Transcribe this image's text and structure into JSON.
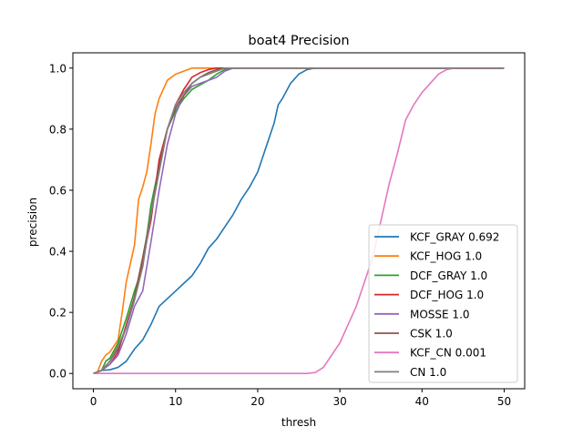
{
  "chart_data": {
    "type": "line",
    "title": "boat4 Precision",
    "xlabel": "thresh",
    "ylabel": "precision",
    "xlim": [
      -2.5,
      52.5
    ],
    "ylim": [
      -0.05,
      1.05
    ],
    "xticks": [
      0,
      10,
      20,
      30,
      40,
      50
    ],
    "yticks": [
      0.0,
      0.2,
      0.4,
      0.6,
      0.8,
      1.0
    ],
    "ytick_labels": [
      "0.0",
      "0.2",
      "0.4",
      "0.6",
      "0.8",
      "1.0"
    ],
    "grid": false,
    "legend_position": "lower-right",
    "series": [
      {
        "name": "KCF_GRAY 0.692",
        "color": "#1f77b4",
        "points": [
          [
            0,
            0
          ],
          [
            1,
            0.01
          ],
          [
            2,
            0.012
          ],
          [
            3,
            0.02
          ],
          [
            4,
            0.04
          ],
          [
            5,
            0.08
          ],
          [
            6,
            0.11
          ],
          [
            7,
            0.16
          ],
          [
            8,
            0.22
          ],
          [
            9,
            0.245
          ],
          [
            10,
            0.27
          ],
          [
            11,
            0.295
          ],
          [
            12,
            0.32
          ],
          [
            13,
            0.36
          ],
          [
            14,
            0.41
          ],
          [
            15,
            0.44
          ],
          [
            16,
            0.48
          ],
          [
            17,
            0.52
          ],
          [
            18,
            0.57
          ],
          [
            19,
            0.61
          ],
          [
            20,
            0.66
          ],
          [
            21,
            0.74
          ],
          [
            22,
            0.82
          ],
          [
            22.5,
            0.88
          ],
          [
            23,
            0.9
          ],
          [
            24,
            0.95
          ],
          [
            25,
            0.98
          ],
          [
            26,
            0.995
          ],
          [
            27,
            1.0
          ],
          [
            50,
            1.0
          ]
        ]
      },
      {
        "name": "KCF_HOG 1.0",
        "color": "#ff7f0e",
        "points": [
          [
            0,
            0
          ],
          [
            0.5,
            0.005
          ],
          [
            1,
            0.04
          ],
          [
            1.5,
            0.06
          ],
          [
            2,
            0.07
          ],
          [
            3,
            0.11
          ],
          [
            3.5,
            0.2
          ],
          [
            4,
            0.3
          ],
          [
            5,
            0.42
          ],
          [
            5.5,
            0.57
          ],
          [
            6,
            0.61
          ],
          [
            6.5,
            0.66
          ],
          [
            7,
            0.75
          ],
          [
            7.5,
            0.85
          ],
          [
            8,
            0.9
          ],
          [
            9,
            0.96
          ],
          [
            10,
            0.98
          ],
          [
            11,
            0.99
          ],
          [
            12,
            1.0
          ],
          [
            50,
            1.0
          ]
        ]
      },
      {
        "name": "DCF_GRAY 1.0",
        "color": "#2ca02c",
        "points": [
          [
            0,
            0
          ],
          [
            1,
            0.01
          ],
          [
            1.5,
            0.04
          ],
          [
            2,
            0.05
          ],
          [
            3,
            0.1
          ],
          [
            4,
            0.18
          ],
          [
            5,
            0.27
          ],
          [
            6,
            0.35
          ],
          [
            7,
            0.55
          ],
          [
            8,
            0.68
          ],
          [
            9,
            0.8
          ],
          [
            10,
            0.86
          ],
          [
            11,
            0.9
          ],
          [
            12,
            0.93
          ],
          [
            13,
            0.945
          ],
          [
            14,
            0.96
          ],
          [
            15,
            0.98
          ],
          [
            16,
            0.995
          ],
          [
            17,
            1.0
          ],
          [
            50,
            1.0
          ]
        ]
      },
      {
        "name": "DCF_HOG 1.0",
        "color": "#d62728",
        "points": [
          [
            0,
            0
          ],
          [
            1,
            0.01
          ],
          [
            2,
            0.03
          ],
          [
            3,
            0.07
          ],
          [
            4,
            0.16
          ],
          [
            5,
            0.25
          ],
          [
            6,
            0.37
          ],
          [
            7,
            0.5
          ],
          [
            7.5,
            0.6
          ],
          [
            8,
            0.7
          ],
          [
            9,
            0.8
          ],
          [
            10,
            0.88
          ],
          [
            11,
            0.93
          ],
          [
            12,
            0.97
          ],
          [
            13,
            0.985
          ],
          [
            14,
            0.995
          ],
          [
            15,
            1.0
          ],
          [
            50,
            1.0
          ]
        ]
      },
      {
        "name": "MOSSE 1.0",
        "color": "#9467bd",
        "points": [
          [
            0,
            0
          ],
          [
            1,
            0.01
          ],
          [
            2,
            0.03
          ],
          [
            3,
            0.06
          ],
          [
            4,
            0.13
          ],
          [
            5,
            0.22
          ],
          [
            6,
            0.27
          ],
          [
            7,
            0.43
          ],
          [
            8,
            0.6
          ],
          [
            9,
            0.75
          ],
          [
            10,
            0.85
          ],
          [
            11,
            0.91
          ],
          [
            12,
            0.94
          ],
          [
            13,
            0.95
          ],
          [
            14,
            0.96
          ],
          [
            15,
            0.97
          ],
          [
            16,
            0.99
          ],
          [
            17,
            1.0
          ],
          [
            50,
            1.0
          ]
        ]
      },
      {
        "name": "CSK 1.0",
        "color": "#8c564b",
        "points": [
          [
            0,
            0
          ],
          [
            1,
            0.01
          ],
          [
            2,
            0.04
          ],
          [
            3,
            0.08
          ],
          [
            4,
            0.15
          ],
          [
            5,
            0.25
          ],
          [
            6,
            0.38
          ],
          [
            7,
            0.52
          ],
          [
            8,
            0.68
          ],
          [
            9,
            0.8
          ],
          [
            10,
            0.87
          ],
          [
            11,
            0.91
          ],
          [
            12,
            0.95
          ],
          [
            13,
            0.97
          ],
          [
            14,
            0.985
          ],
          [
            15,
            0.995
          ],
          [
            16,
            1.0
          ],
          [
            50,
            1.0
          ]
        ]
      },
      {
        "name": "KCF_CN 0.001",
        "color": "#e377c2",
        "points": [
          [
            0,
            0
          ],
          [
            26,
            0
          ],
          [
            27,
            0.003
          ],
          [
            28,
            0.02
          ],
          [
            29,
            0.06
          ],
          [
            30,
            0.1
          ],
          [
            31,
            0.16
          ],
          [
            32,
            0.22
          ],
          [
            33,
            0.3
          ],
          [
            34,
            0.38
          ],
          [
            35,
            0.5
          ],
          [
            36,
            0.62
          ],
          [
            37,
            0.72
          ],
          [
            38,
            0.83
          ],
          [
            39,
            0.88
          ],
          [
            40,
            0.92
          ],
          [
            41,
            0.95
          ],
          [
            42,
            0.98
          ],
          [
            43,
            0.995
          ],
          [
            44,
            1.0
          ],
          [
            50,
            1.0
          ]
        ]
      },
      {
        "name": "CN 1.0",
        "color": "#7f7f7f",
        "points": [
          [
            0,
            0
          ],
          [
            1,
            0.01
          ],
          [
            2,
            0.04
          ],
          [
            3,
            0.09
          ],
          [
            4,
            0.15
          ],
          [
            5,
            0.24
          ],
          [
            6,
            0.35
          ],
          [
            7,
            0.52
          ],
          [
            8,
            0.66
          ],
          [
            9,
            0.8
          ],
          [
            10,
            0.88
          ],
          [
            11,
            0.92
          ],
          [
            12,
            0.95
          ],
          [
            13,
            0.97
          ],
          [
            14,
            0.98
          ],
          [
            15,
            0.99
          ],
          [
            16,
            1.0
          ],
          [
            50,
            1.0
          ]
        ]
      }
    ]
  }
}
